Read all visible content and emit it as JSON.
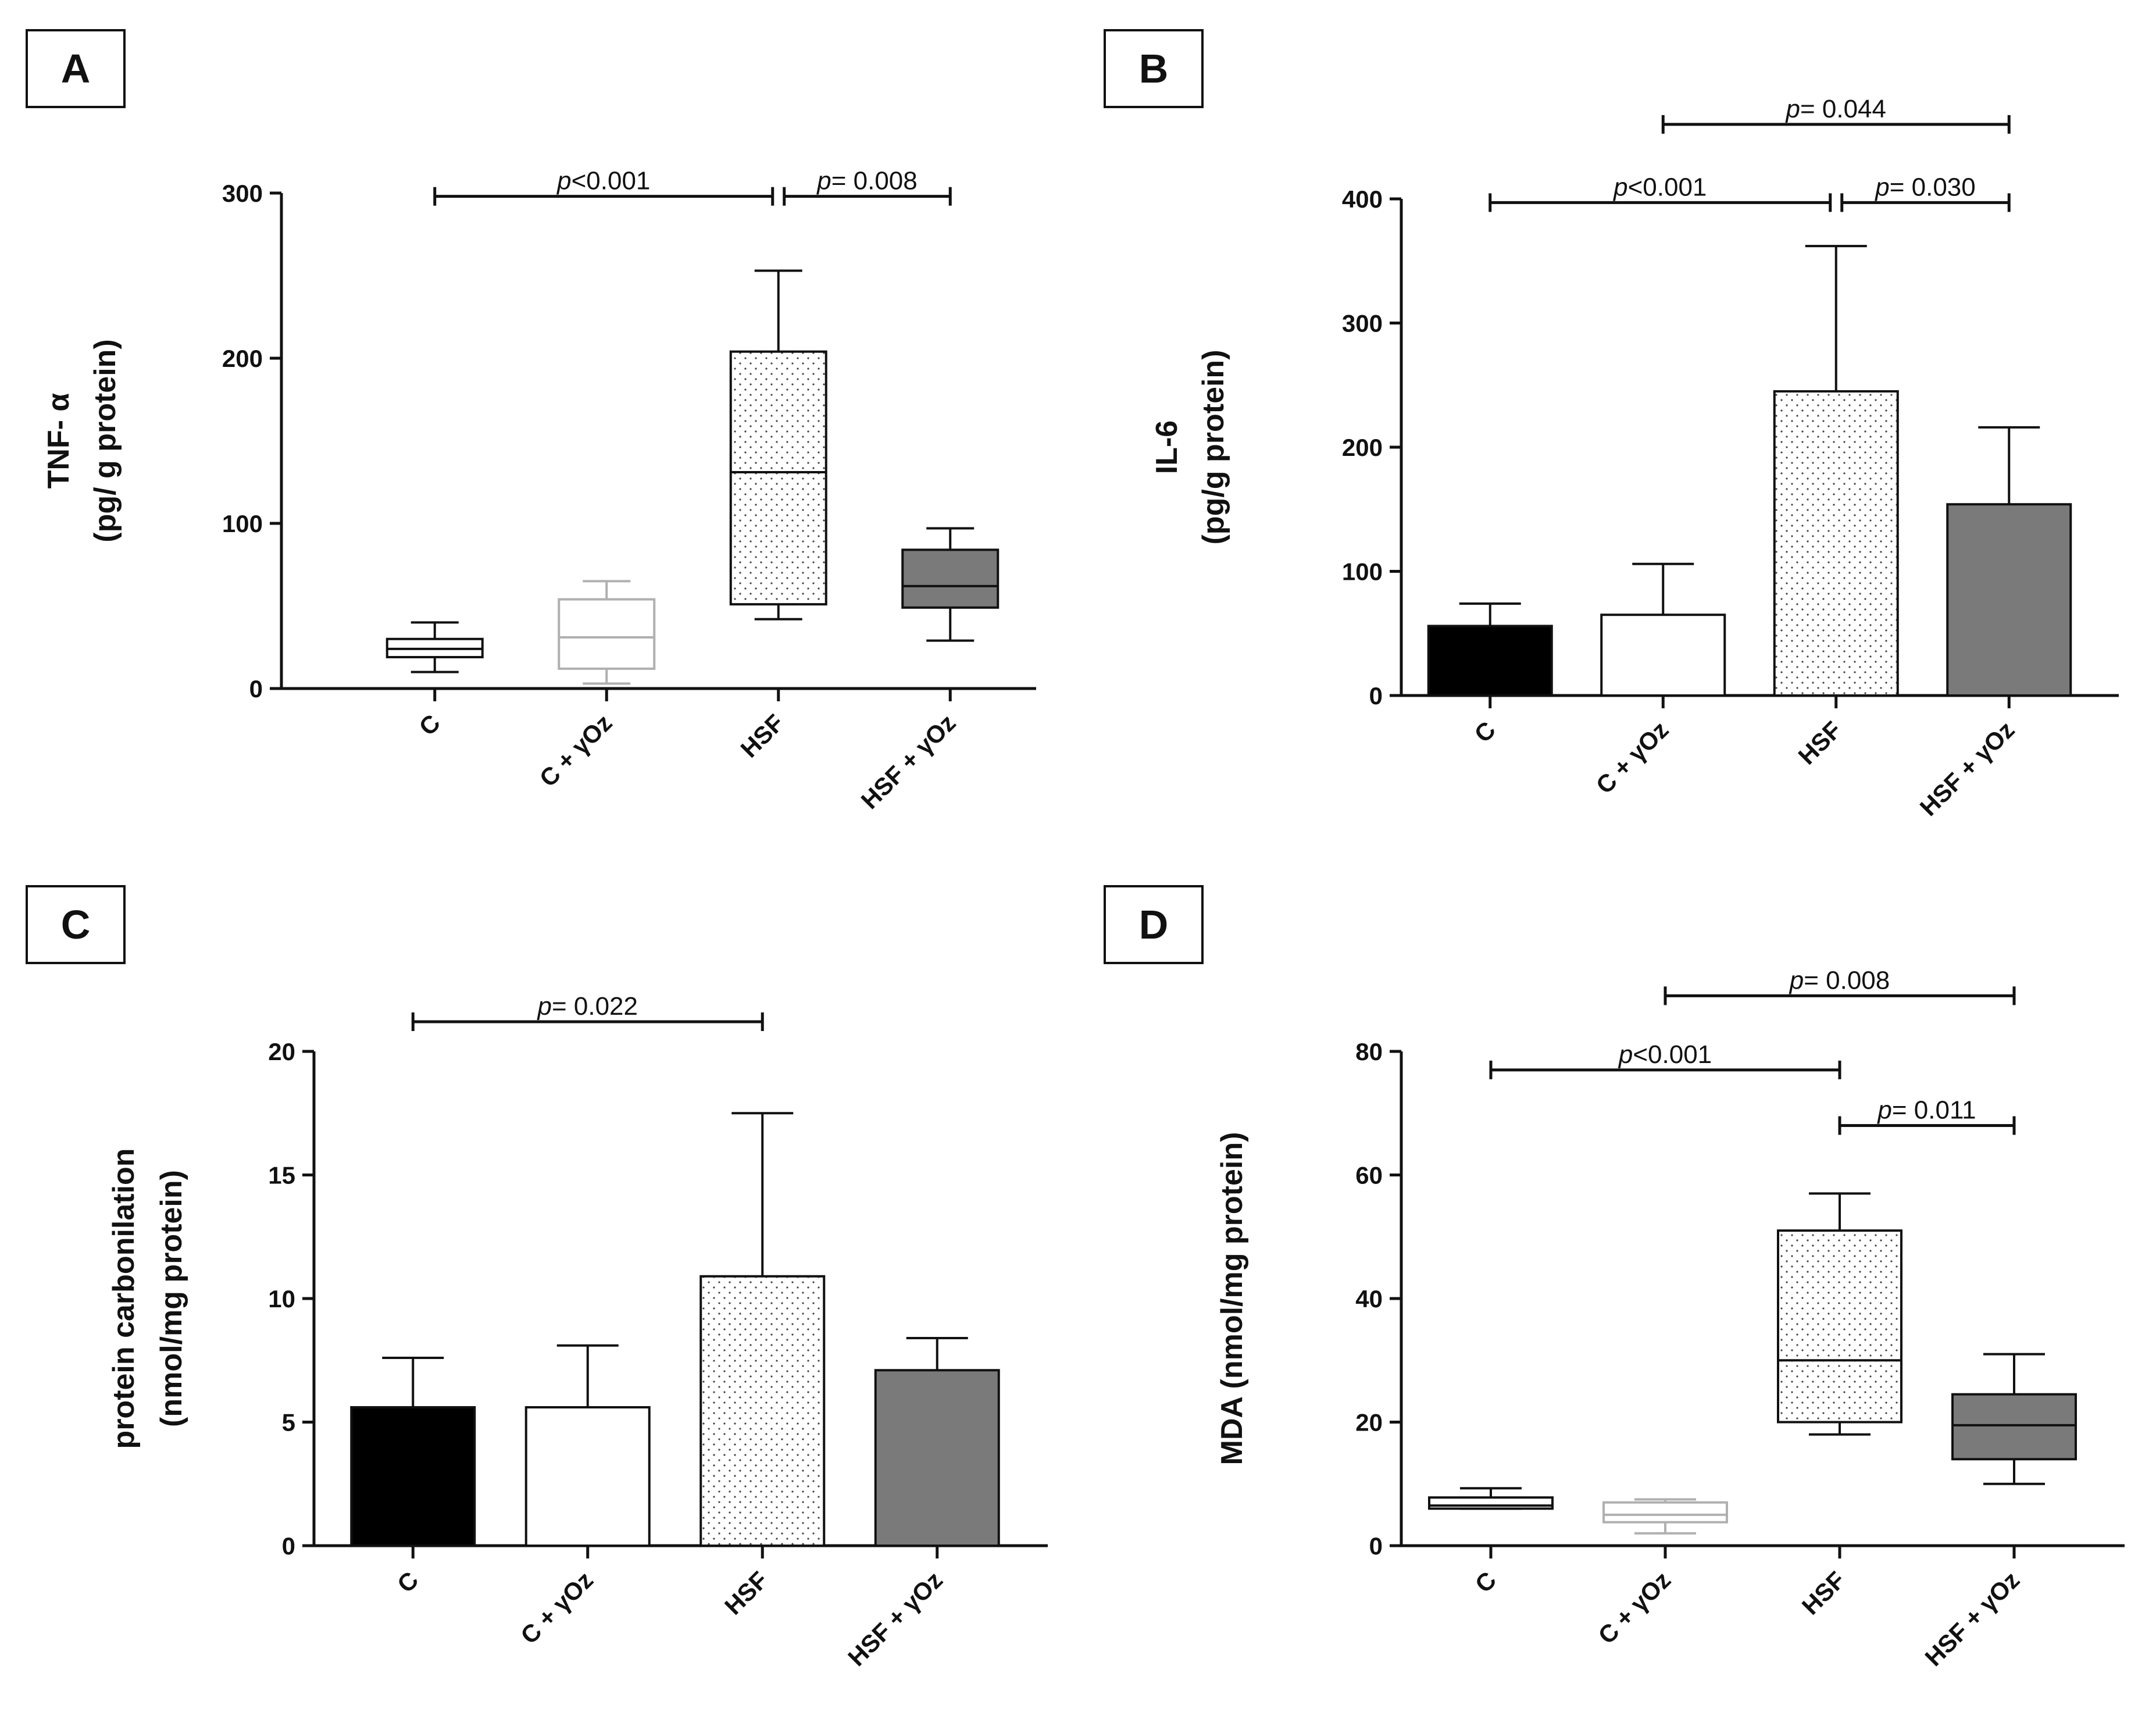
{
  "panels": [
    {
      "id": "a",
      "letter": "A",
      "chart_data": {
        "type": "box",
        "ylabel": [
          "TNF- α",
          "(pg/ g protein)"
        ],
        "ylim": [
          0,
          300
        ],
        "yticks": [
          0,
          100,
          200,
          300
        ],
        "categories": [
          "C",
          "C + γOz",
          "HSF",
          "HSF + γOz"
        ],
        "boxes": [
          {
            "min": 10,
            "q1": 19,
            "median": 24,
            "q3": 30,
            "max": 40
          },
          {
            "min": 3,
            "q1": 12,
            "median": 31,
            "q3": 54,
            "max": 65
          },
          {
            "min": 42,
            "q1": 51,
            "median": 131,
            "q3": 204,
            "max": 253
          },
          {
            "min": 29,
            "q1": 49,
            "median": 62,
            "q3": 84,
            "max": 97
          }
        ],
        "styles": [
          "white",
          "lightgray",
          "dotted",
          "gray"
        ],
        "brackets": [
          {
            "from": 0,
            "to": 2,
            "y": 298,
            "prefix": "p",
            "text": "<0.001"
          },
          {
            "from": 2,
            "to": 3,
            "y": 298,
            "prefix": "p",
            "text": "= 0.008"
          }
        ]
      }
    },
    {
      "id": "b",
      "letter": "B",
      "chart_data": {
        "type": "bar",
        "ylabel": [
          "IL-6",
          "(pg/g protein)"
        ],
        "ylim": [
          0,
          400
        ],
        "yticks": [
          0,
          100,
          200,
          300,
          400
        ],
        "categories": [
          "C",
          "C + γOz",
          "HSF",
          "HSF + γOz"
        ],
        "values": [
          56,
          65,
          245,
          154
        ],
        "errors": [
          74,
          106,
          362,
          216
        ],
        "styles": [
          "black",
          "white",
          "dotted",
          "gray"
        ],
        "brackets": [
          {
            "from": 0,
            "to": 2,
            "y": 397,
            "prefix": "p",
            "text": "<0.001"
          },
          {
            "from": 2,
            "to": 3,
            "y": 397,
            "prefix": "p",
            "text": "= 0.030"
          },
          {
            "from": 1,
            "to": 3,
            "y": 460,
            "prefix": "p",
            "text": "= 0.044"
          }
        ]
      }
    },
    {
      "id": "c",
      "letter": "C",
      "chart_data": {
        "type": "bar",
        "ylabel": [
          "protein carbonilation",
          "(nmol/mg protein)"
        ],
        "ylim": [
          0,
          20
        ],
        "yticks": [
          0,
          5,
          10,
          15,
          20
        ],
        "categories": [
          "C",
          "C + γOz",
          "HSF",
          "HSF + γOz"
        ],
        "values": [
          5.6,
          5.6,
          10.9,
          7.1
        ],
        "errors": [
          7.6,
          8.1,
          17.5,
          8.4
        ],
        "styles": [
          "black",
          "white",
          "dotted",
          "gray"
        ],
        "brackets": [
          {
            "from": 0,
            "to": 2,
            "y": 21.2,
            "prefix": "p",
            "text": "= 0.022"
          }
        ]
      }
    },
    {
      "id": "d",
      "letter": "D",
      "chart_data": {
        "type": "box",
        "ylabel": [
          "MDA (nmol/mg protein)"
        ],
        "ylim": [
          0,
          80
        ],
        "yticks": [
          0,
          20,
          40,
          60,
          80
        ],
        "categories": [
          "C",
          "C + γOz",
          "HSF",
          "HSF + γOz"
        ],
        "boxes": [
          {
            "min": 6,
            "q1": 6,
            "median": 6.5,
            "q3": 7.8,
            "max": 9.3
          },
          {
            "min": 2,
            "q1": 3.8,
            "median": 5,
            "q3": 7,
            "max": 7.5
          },
          {
            "min": 18,
            "q1": 20,
            "median": 30,
            "q3": 51,
            "max": 57
          },
          {
            "min": 10,
            "q1": 14,
            "median": 19.5,
            "q3": 24.5,
            "max": 31
          }
        ],
        "styles": [
          "white",
          "lightgray",
          "dotted",
          "gray"
        ],
        "brackets": [
          {
            "from": 0,
            "to": 2,
            "y": 77,
            "prefix": "p",
            "text": "<0.001"
          },
          {
            "from": 2,
            "to": 3,
            "y": 68,
            "prefix": "p",
            "text": "= 0.011"
          },
          {
            "from": 1,
            "to": 3,
            "y": 89,
            "prefix": "p",
            "text": "= 0.008"
          }
        ]
      }
    }
  ],
  "colors": {
    "axis": "#111111",
    "gray_fill": "#7a7a7a",
    "light_gray_line": "#b0b0b0",
    "dot": "#444444"
  }
}
